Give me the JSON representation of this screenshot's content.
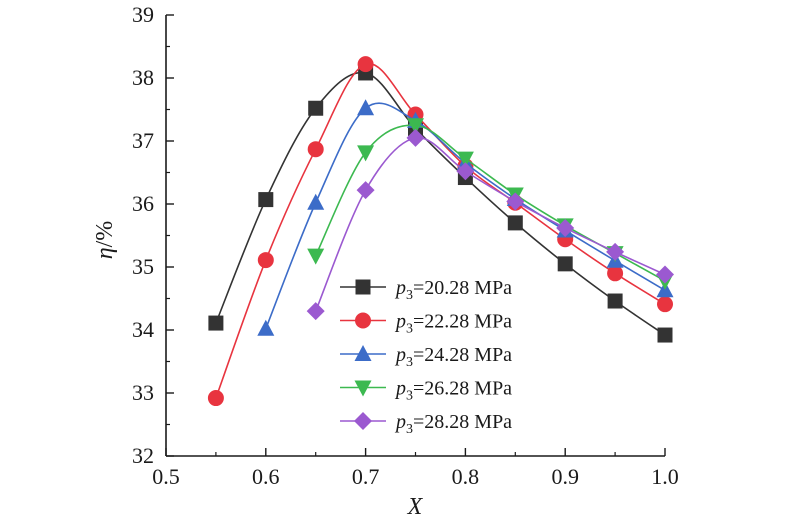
{
  "chart_data": {
    "type": "line",
    "xlabel": "X",
    "ylabel_symbol": "η",
    "ylabel_unit": "/%",
    "xlim": [
      0.5,
      1.0
    ],
    "ylim": [
      32,
      39
    ],
    "xticks": [
      "0.5",
      "0.6",
      "0.7",
      "0.8",
      "0.9",
      "1.0"
    ],
    "yticks": [
      "32",
      "33",
      "34",
      "35",
      "36",
      "37",
      "38",
      "39"
    ],
    "grid": false,
    "legend_placement": "center",
    "series": [
      {
        "legend_symbol": "p",
        "legend_subscript": "3",
        "legend_value": "=20.28 MPa",
        "color": "#333333",
        "marker": "square",
        "x": [
          0.55,
          0.6,
          0.65,
          0.7,
          0.75,
          0.8,
          0.85,
          0.9,
          0.95,
          1.0
        ],
        "y": [
          34.11,
          36.07,
          37.52,
          38.08,
          37.2,
          36.42,
          35.7,
          35.05,
          34.46,
          33.92
        ]
      },
      {
        "legend_symbol": "p",
        "legend_subscript": "3",
        "legend_value": "=22.28 MPa",
        "color": "#e8343f",
        "marker": "circle",
        "x": [
          0.55,
          0.6,
          0.65,
          0.7,
          0.75,
          0.8,
          0.85,
          0.9,
          0.95,
          1.0
        ],
        "y": [
          32.92,
          35.11,
          36.87,
          38.22,
          37.42,
          36.6,
          36.02,
          35.44,
          34.9,
          34.41
        ]
      },
      {
        "legend_symbol": "p",
        "legend_subscript": "3",
        "legend_value": "=24.28 MPa",
        "color": "#3c6cc8",
        "marker": "triangle-up",
        "x": [
          0.6,
          0.65,
          0.7,
          0.75,
          0.8,
          0.85,
          0.9,
          0.95,
          1.0
        ],
        "y": [
          34.02,
          36.02,
          37.52,
          37.32,
          36.65,
          36.08,
          35.58,
          35.1,
          34.63
        ]
      },
      {
        "legend_symbol": "p",
        "legend_subscript": "3",
        "legend_value": "=26.28 MPa",
        "color": "#3cb950",
        "marker": "triangle-down",
        "x": [
          0.65,
          0.7,
          0.75,
          0.8,
          0.85,
          0.9,
          0.95,
          1.0
        ],
        "y": [
          35.18,
          36.82,
          37.25,
          36.72,
          36.15,
          35.66,
          35.22,
          34.78
        ]
      },
      {
        "legend_symbol": "p",
        "legend_subscript": "3",
        "legend_value": "=28.28 MPa",
        "color": "#9b59d0",
        "marker": "diamond",
        "x": [
          0.65,
          0.7,
          0.75,
          0.8,
          0.85,
          0.9,
          0.95,
          1.0
        ],
        "y": [
          34.3,
          36.22,
          37.05,
          36.52,
          36.04,
          35.62,
          35.24,
          34.88
        ]
      }
    ]
  }
}
